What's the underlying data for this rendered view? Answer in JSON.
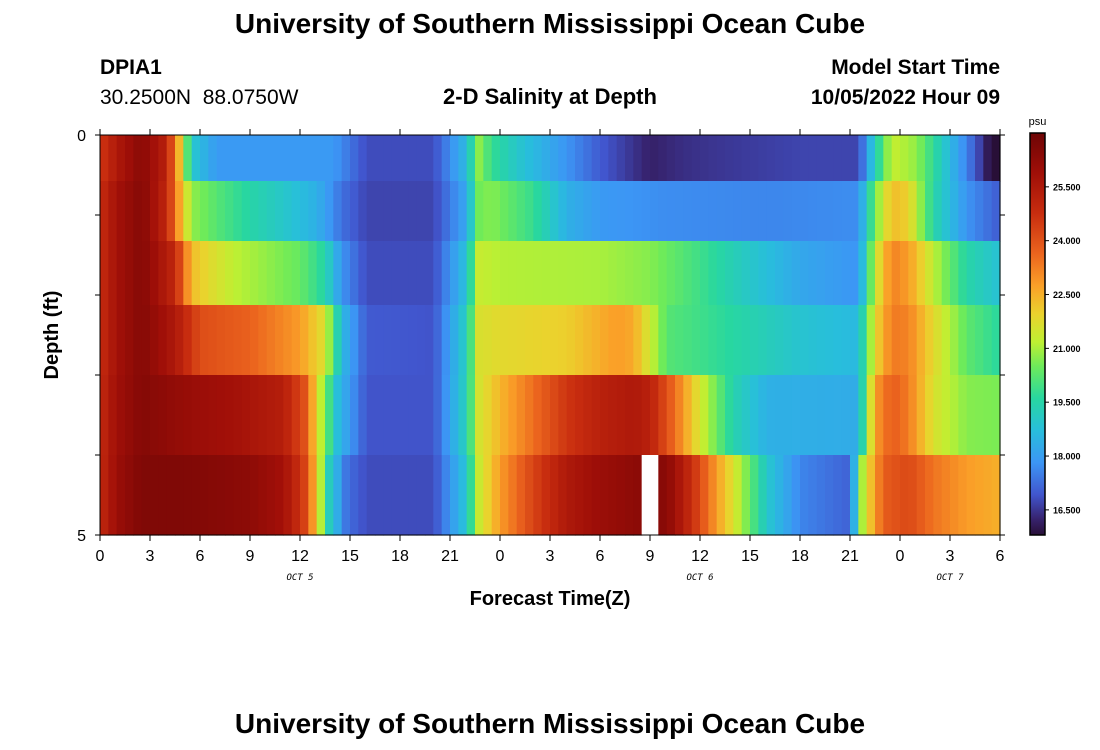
{
  "header": {
    "title": "University of Southern Mississippi Ocean Cube",
    "station_id": "DPIA1",
    "coordinates": "30.2500N  88.0750W",
    "plot_title": "2-D Salinity at Depth",
    "model_label": "Model Start Time",
    "model_time": "10/05/2022 Hour 09"
  },
  "footer": {
    "title": "University of Southern Mississippi Ocean Cube"
  },
  "chart_data": {
    "type": "heatmap",
    "title": "2-D Salinity at Depth",
    "xlabel": "Forecast Time(Z)",
    "ylabel": "Depth (ft)",
    "x_ticks": [
      "0",
      "3",
      "6",
      "9",
      "12",
      "15",
      "18",
      "21",
      "0",
      "3",
      "6",
      "9",
      "12",
      "15",
      "18",
      "21",
      "0",
      "3",
      "6"
    ],
    "x_tick_hours": [
      0,
      3,
      6,
      9,
      12,
      15,
      18,
      21,
      24,
      27,
      30,
      33,
      36,
      39,
      42,
      45,
      48,
      51,
      54
    ],
    "date_labels": [
      {
        "text": "OCT 5",
        "hour": 12
      },
      {
        "text": "OCT 6",
        "hour": 36
      },
      {
        "text": "OCT 7",
        "hour": 51
      }
    ],
    "xlim": [
      0,
      54
    ],
    "y_ticks": [
      "0",
      "5"
    ],
    "ylim": [
      0,
      5
    ],
    "depth_levels": [
      0.25,
      0.9,
      1.75,
      2.5,
      3.5,
      4.5
    ],
    "unit": "psu",
    "colorbar_ticks": [
      "25.500",
      "24.000",
      "22.500",
      "21.000",
      "19.500",
      "18.000",
      "16.500"
    ],
    "colorbar_tick_values": [
      25.5,
      24.0,
      22.5,
      21.0,
      19.5,
      18.0,
      16.5
    ],
    "colorbar_range": [
      15.8,
      27.0
    ],
    "missing_hour": 33,
    "series": [
      {
        "depth": 0.25,
        "keyframes": [
          [
            0,
            24.5
          ],
          [
            1,
            25.5
          ],
          [
            2.5,
            26.4
          ],
          [
            4,
            25.2
          ],
          [
            4.8,
            22.2
          ],
          [
            5.5,
            19.0
          ],
          [
            7,
            17.9
          ],
          [
            14,
            17.9
          ],
          [
            16,
            16.8
          ],
          [
            20,
            16.8
          ],
          [
            22,
            18.6
          ],
          [
            22.7,
            20.8
          ],
          [
            23.5,
            19.8
          ],
          [
            25,
            19.0
          ],
          [
            27,
            18.2
          ],
          [
            30,
            17.0
          ],
          [
            33,
            16.2
          ],
          [
            35,
            16.4
          ],
          [
            37,
            16.5
          ],
          [
            42,
            16.7
          ],
          [
            45.5,
            16.7
          ],
          [
            46.5,
            19.2
          ],
          [
            47.5,
            21.3
          ],
          [
            49,
            20.8
          ],
          [
            51,
            18.6
          ],
          [
            52.5,
            17.0
          ],
          [
            53.3,
            16.0
          ],
          [
            53.5,
            15.8
          ],
          [
            54,
            15.8
          ]
        ]
      },
      {
        "depth": 0.9,
        "keyframes": [
          [
            0,
            24.8
          ],
          [
            1,
            25.8
          ],
          [
            2.5,
            26.5
          ],
          [
            4,
            25.0
          ],
          [
            5,
            22.0
          ],
          [
            5.5,
            20.8
          ],
          [
            7,
            20.2
          ],
          [
            9,
            19.5
          ],
          [
            11,
            19.0
          ],
          [
            13,
            18.4
          ],
          [
            14.5,
            17.3
          ],
          [
            16,
            16.7
          ],
          [
            20,
            16.7
          ],
          [
            22,
            18.2
          ],
          [
            22.7,
            20.5
          ],
          [
            23.5,
            20.7
          ],
          [
            26,
            19.8
          ],
          [
            28,
            18.4
          ],
          [
            30,
            17.9
          ],
          [
            34,
            17.7
          ],
          [
            40,
            17.6
          ],
          [
            45.5,
            17.7
          ],
          [
            46.5,
            20.5
          ],
          [
            47.5,
            22.3
          ],
          [
            48.5,
            22.0
          ],
          [
            50,
            19.5
          ],
          [
            52,
            17.8
          ],
          [
            54,
            17.0
          ]
        ]
      },
      {
        "depth": 1.75,
        "keyframes": [
          [
            0,
            24.8
          ],
          [
            1,
            25.8
          ],
          [
            2.5,
            26.5
          ],
          [
            4.5,
            25.0
          ],
          [
            5.5,
            22.3
          ],
          [
            6.5,
            21.8
          ],
          [
            8,
            21.2
          ],
          [
            10,
            20.8
          ],
          [
            12,
            20.4
          ],
          [
            13.5,
            19.5
          ],
          [
            14.5,
            17.8
          ],
          [
            16,
            16.8
          ],
          [
            20,
            16.8
          ],
          [
            22,
            18.8
          ],
          [
            22.7,
            21.3
          ],
          [
            24,
            21.1
          ],
          [
            30,
            21.0
          ],
          [
            33,
            20.7
          ],
          [
            36,
            19.9
          ],
          [
            39,
            19.0
          ],
          [
            42,
            18.2
          ],
          [
            45.5,
            17.8
          ],
          [
            46.5,
            21.3
          ],
          [
            47.5,
            23.2
          ],
          [
            48.5,
            22.8
          ],
          [
            50,
            21.2
          ],
          [
            52,
            19.5
          ],
          [
            54,
            18.8
          ]
        ]
      },
      {
        "depth": 2.5,
        "keyframes": [
          [
            0,
            24.8
          ],
          [
            1,
            25.8
          ],
          [
            2.5,
            26.5
          ],
          [
            4.5,
            25.5
          ],
          [
            6,
            24.1
          ],
          [
            9,
            23.7
          ],
          [
            12,
            22.8
          ],
          [
            13.5,
            21.6
          ],
          [
            14.5,
            18.6
          ],
          [
            16,
            17.0
          ],
          [
            20,
            16.9
          ],
          [
            22,
            19.2
          ],
          [
            22.7,
            21.6
          ],
          [
            24,
            21.8
          ],
          [
            28,
            22.0
          ],
          [
            31,
            22.8
          ],
          [
            32,
            22.6
          ],
          [
            34,
            20.2
          ],
          [
            36,
            19.9
          ],
          [
            39,
            19.4
          ],
          [
            42,
            18.9
          ],
          [
            45.5,
            18.6
          ],
          [
            46.5,
            21.8
          ],
          [
            47.5,
            23.3
          ],
          [
            48.5,
            23.2
          ],
          [
            50,
            21.8
          ],
          [
            52,
            20.3
          ],
          [
            54,
            19.6
          ]
        ]
      },
      {
        "depth": 3.5,
        "keyframes": [
          [
            0,
            24.9
          ],
          [
            1,
            25.9
          ],
          [
            2.5,
            26.5
          ],
          [
            5,
            26.1
          ],
          [
            8,
            25.8
          ],
          [
            11,
            25.3
          ],
          [
            12.3,
            24.0
          ],
          [
            13.2,
            21.3
          ],
          [
            14.3,
            18.6
          ],
          [
            16,
            16.9
          ],
          [
            20,
            16.9
          ],
          [
            22,
            19.3
          ],
          [
            22.7,
            21.5
          ],
          [
            24,
            22.4
          ],
          [
            26,
            23.5
          ],
          [
            28,
            24.6
          ],
          [
            30,
            25.2
          ],
          [
            32,
            25.5
          ],
          [
            33,
            25.2
          ],
          [
            34.5,
            23.5
          ],
          [
            36,
            21.5
          ],
          [
            38,
            19.4
          ],
          [
            40,
            18.4
          ],
          [
            45.5,
            18.3
          ],
          [
            46.5,
            22.8
          ],
          [
            47.5,
            23.8
          ],
          [
            48.5,
            23.3
          ],
          [
            50,
            21.6
          ],
          [
            52,
            20.7
          ],
          [
            54,
            20.6
          ]
        ]
      },
      {
        "depth": 4.5,
        "keyframes": [
          [
            0,
            24.9
          ],
          [
            1,
            26.0
          ],
          [
            2.5,
            26.6
          ],
          [
            5,
            26.6
          ],
          [
            9,
            26.3
          ],
          [
            11,
            25.8
          ],
          [
            12.2,
            24.5
          ],
          [
            12.9,
            22.5
          ],
          [
            13.7,
            19.3
          ],
          [
            14.8,
            17.3
          ],
          [
            16,
            16.8
          ],
          [
            20,
            16.8
          ],
          [
            22,
            18.9
          ],
          [
            22.7,
            21.3
          ],
          [
            24,
            22.8
          ],
          [
            26,
            24.3
          ],
          [
            28,
            25.5
          ],
          [
            30,
            26.0
          ],
          [
            32.8,
            26.4
          ],
          [
            34,
            26.4
          ],
          [
            35.5,
            24.8
          ],
          [
            37,
            22.8
          ],
          [
            38.5,
            21.0
          ],
          [
            40,
            19.0
          ],
          [
            42,
            17.6
          ],
          [
            45,
            17.1
          ],
          [
            45.8,
            21.3
          ],
          [
            47,
            23.8
          ],
          [
            48.5,
            24.2
          ],
          [
            50,
            23.4
          ],
          [
            52,
            22.8
          ],
          [
            54,
            22.5
          ]
        ]
      }
    ]
  }
}
